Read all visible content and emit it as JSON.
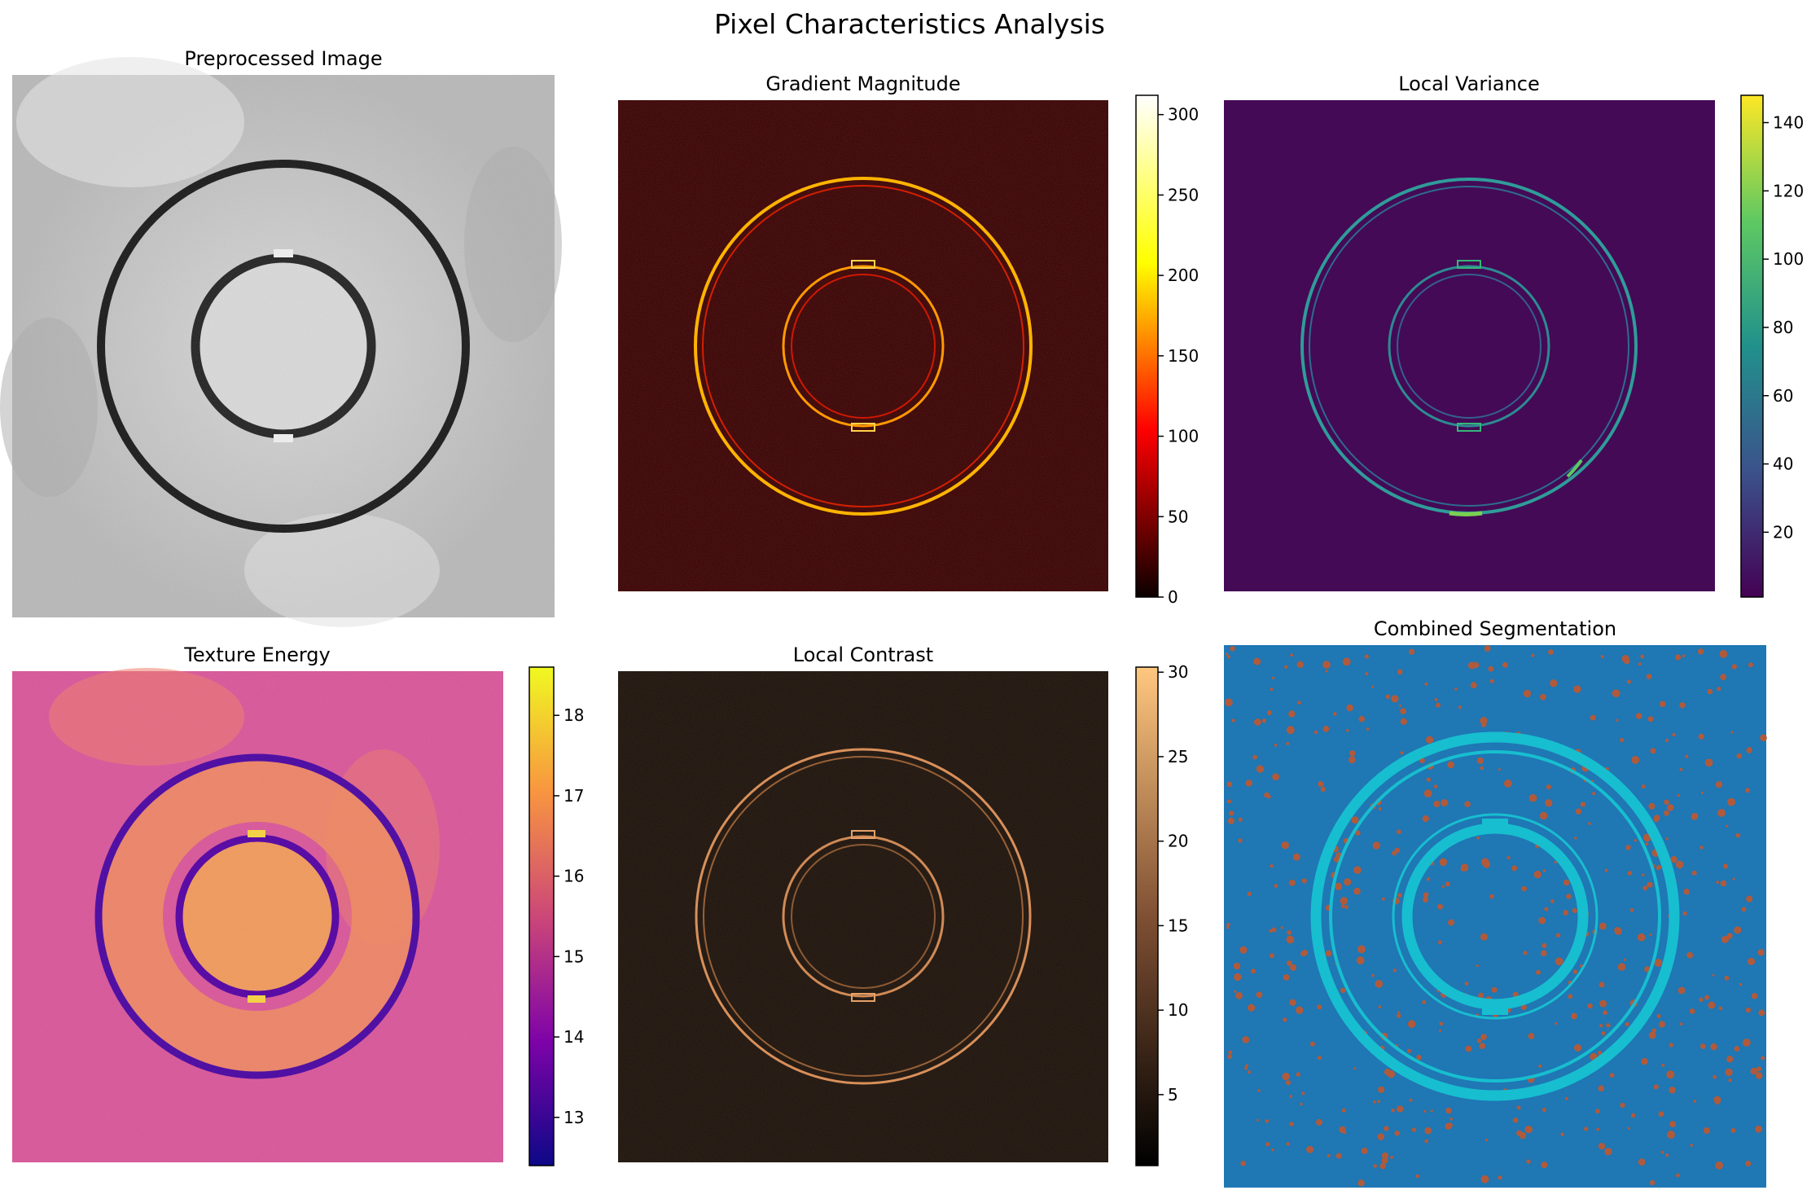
{
  "figure": {
    "title": "Pixel Characteristics Analysis"
  },
  "panels": [
    {
      "id": "preprocessed",
      "title": "Preprocessed Image",
      "colormap": "gray",
      "background_color": "#c8c8c8",
      "ring_color": "#141414",
      "inner_fill_color": "#d6d6d6"
    },
    {
      "id": "gradient",
      "title": "Gradient Magnitude",
      "colormap": "hot",
      "background_color": "#3c0000",
      "ring_color": "#ffcc33",
      "colorbar": {
        "ticks": [
          "0",
          "50",
          "100",
          "150",
          "200",
          "250",
          "300"
        ],
        "tick_values": [
          0,
          50,
          100,
          150,
          200,
          250,
          300
        ],
        "min": 0,
        "max": 312,
        "gradient": [
          "#0b0000",
          "#ff0000",
          "#ffff00",
          "#ffffff"
        ]
      }
    },
    {
      "id": "variance",
      "title": "Local Variance",
      "colormap": "viridis",
      "background_color": "#440a56",
      "ring_color": "#31a89b",
      "colorbar": {
        "ticks": [
          "20",
          "40",
          "60",
          "80",
          "100",
          "120",
          "140"
        ],
        "tick_values": [
          20,
          40,
          60,
          80,
          100,
          120,
          140
        ],
        "min": 1,
        "max": 148,
        "gradient": [
          "#440154",
          "#3b528b",
          "#21918c",
          "#5ec962",
          "#fde725"
        ]
      }
    },
    {
      "id": "texture",
      "title": "Texture Energy",
      "colormap": "plasma",
      "background_color": "#d9569a",
      "ring_color": "#4b06a0",
      "inner_fill_color": "#ef8a62",
      "colorbar": {
        "ticks": [
          "13",
          "14",
          "15",
          "16",
          "17",
          "18"
        ],
        "tick_values": [
          13,
          14,
          15,
          16,
          17,
          18
        ],
        "min": 12.4,
        "max": 18.6,
        "gradient": [
          "#0d0887",
          "#7e03a8",
          "#cc4778",
          "#f89540",
          "#f0f921"
        ]
      }
    },
    {
      "id": "contrast",
      "title": "Local Contrast",
      "colormap": "copper",
      "background_color": "#1e130b",
      "ring_color": "#e79b62",
      "colorbar": {
        "ticks": [
          "5",
          "10",
          "15",
          "20",
          "25",
          "30"
        ],
        "tick_values": [
          5,
          10,
          15,
          20,
          25,
          30
        ],
        "min": 0.8,
        "max": 30.3,
        "gradient": [
          "#000000",
          "#7f5033",
          "#ffc77f"
        ]
      }
    },
    {
      "id": "segmentation",
      "title": "Combined Segmentation",
      "colormap": "tab10",
      "background_color": "#1f77b4",
      "ring_color": "#17becf",
      "speckle_color": "#b05a3c"
    }
  ]
}
